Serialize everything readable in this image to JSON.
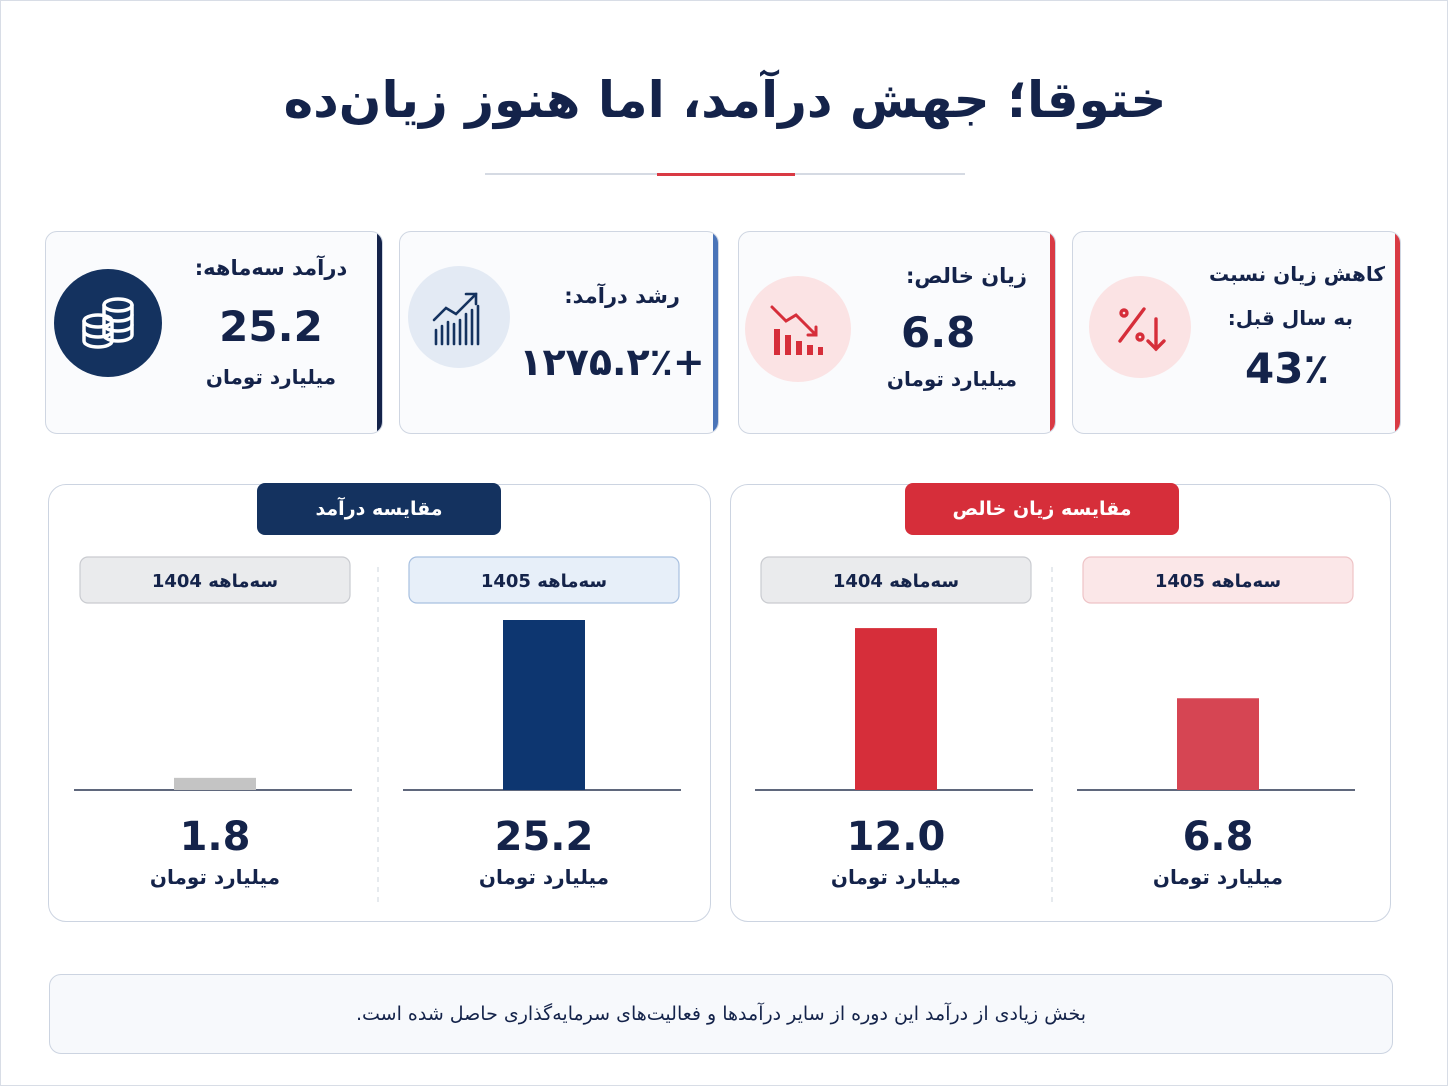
{
  "title": "ختوقا؛ جهش درآمد، اما هنوز زیان‌ده",
  "kpis": {
    "revenue": {
      "label": "درآمد سه‌ماهه:",
      "value": "25.2",
      "unit": "میلیارد تومان",
      "icon": "coins-icon"
    },
    "growth": {
      "label": "رشد درآمد:",
      "value": "+۱۲۷۵.۲٪",
      "icon": "growth-chart-icon"
    },
    "loss": {
      "label": "زیان خالص:",
      "value": "6.8",
      "unit": "میلیارد تومان",
      "icon": "declining-chart-icon"
    },
    "reduction": {
      "label_line1": "کاهش زیان نسبت",
      "label_line2": "به سال قبل:",
      "value": "43٪",
      "icon": "percent-down-icon"
    }
  },
  "colors": {
    "navy": "#14325f",
    "dark_navy": "#14234a",
    "red": "#d62e3a",
    "light_red": "#d64553",
    "gray": "#c4c4c4"
  },
  "chart_data": [
    {
      "type": "bar",
      "title": "مقایسه درآمد",
      "categories": [
        "سه‌ماهه 1405",
        "سه‌ماهه 1404"
      ],
      "values": [
        25.2,
        1.8
      ],
      "value_labels": [
        "25.2",
        "1.8"
      ],
      "unit": "میلیارد تومان",
      "colors": [
        "#0d3670",
        "#c4c4c4"
      ],
      "ylim": [
        0,
        25.2
      ],
      "grid": false
    },
    {
      "type": "bar",
      "title": "مقایسه زیان خالص",
      "categories": [
        "سه‌ماهه 1405",
        "سه‌ماهه 1404"
      ],
      "values": [
        6.8,
        12.0
      ],
      "value_labels": [
        "6.8",
        "12.0"
      ],
      "unit": "میلیارد تومان",
      "colors": [
        "#d64553",
        "#d62e3a"
      ],
      "ylim": [
        0,
        12.6
      ],
      "grid": false
    }
  ],
  "footer_note": "بخش زیادی از درآمد این دوره از سایر درآمدها و فعالیت‌های سرمایه‌گذاری حاصل شده است."
}
